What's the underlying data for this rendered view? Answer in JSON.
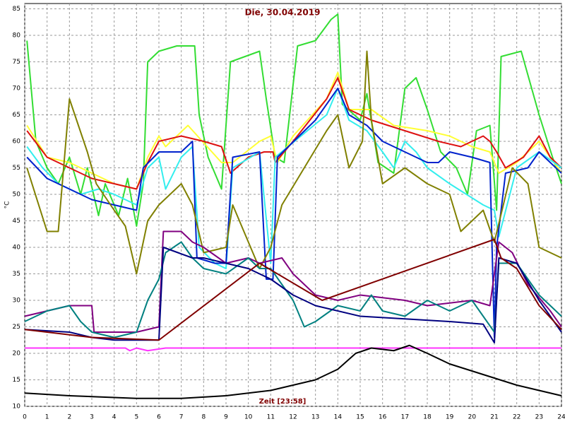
{
  "chart_data": {
    "type": "line",
    "title": "Die, 30.04.2019",
    "x_label": "Zeit [23:58]",
    "y_label": "°C",
    "xlim": [
      0,
      24
    ],
    "ylim": [
      10,
      86
    ],
    "xticks": [
      0,
      1,
      2,
      3,
      4,
      5,
      6,
      7,
      8,
      9,
      10,
      11,
      12,
      13,
      14,
      15,
      16,
      17,
      18,
      19,
      20,
      21,
      22,
      23,
      24
    ],
    "yticks": [
      10,
      15,
      20,
      25,
      30,
      35,
      40,
      45,
      50,
      55,
      60,
      65,
      70,
      75,
      80,
      85
    ],
    "grid": true,
    "series": [
      {
        "color": "#33dd33",
        "x": [
          0.1,
          0.5,
          1,
          1.5,
          2,
          2.5,
          2.8,
          3.3,
          3.6,
          4.2,
          4.6,
          5,
          5.3,
          5.5,
          6,
          6.8,
          7.6,
          7.8,
          8.2,
          8.8,
          9.2,
          10.5,
          10.8,
          11.2,
          11.6,
          12.2,
          13,
          13.7,
          14,
          14.2,
          15,
          15.3,
          15.8,
          16.5,
          17,
          17.5,
          18,
          18.6,
          19.3,
          19.8,
          20.2,
          20.8,
          21.1,
          21.3,
          22.2,
          23,
          23.6,
          24
        ],
        "values": [
          79,
          60,
          55,
          52,
          57,
          50,
          55,
          46,
          52,
          46,
          53,
          44,
          52,
          75,
          77,
          78,
          78,
          65,
          57,
          51,
          75,
          77,
          68,
          57,
          56,
          78,
          79,
          83,
          84,
          67,
          64,
          69,
          56,
          54,
          70,
          72,
          66,
          58,
          55,
          50,
          62,
          63,
          47,
          76,
          77,
          65,
          57,
          52
        ]
      },
      {
        "color": "#ffff33",
        "x": [
          0.1,
          1,
          2,
          3,
          4,
          5,
          5.5,
          6,
          6.3,
          7.3,
          8.8,
          9.3,
          10.5,
          11,
          11.3,
          12,
          13.5,
          14,
          14.5,
          15.5,
          16.5,
          18,
          19,
          20,
          20.8,
          21.2,
          22,
          23,
          24
        ],
        "values": [
          63,
          57,
          56,
          54,
          52,
          51,
          57,
          61,
          59,
          63,
          56,
          56,
          60,
          61,
          56,
          61,
          68,
          73,
          66,
          66,
          63,
          62,
          61,
          59,
          58,
          54,
          56,
          60,
          54
        ]
      },
      {
        "color": "#dd1111",
        "x": [
          0.1,
          1,
          2,
          3,
          4,
          5,
          5.5,
          6,
          7,
          8,
          8.8,
          9.2,
          10,
          10.7,
          11.1,
          11.2,
          12,
          13.5,
          14,
          14.5,
          15.5,
          17,
          18.5,
          19.5,
          20.5,
          20.8,
          21.1,
          21.5,
          22.3,
          23,
          23.5,
          24
        ],
        "values": [
          62,
          57,
          55,
          53,
          52,
          51,
          56,
          60,
          61,
          60,
          59,
          54,
          57,
          58,
          58,
          56,
          60,
          68,
          72,
          66,
          64,
          62,
          60,
          59,
          61,
          60,
          58,
          55,
          57,
          61,
          57,
          55
        ]
      },
      {
        "color": "#33eeee",
        "x": [
          0.1,
          0.8,
          1.5,
          2.5,
          3.3,
          4,
          5,
          5.5,
          6,
          6.3,
          7,
          7.5,
          7.8,
          8.5,
          9,
          9.3,
          10.5,
          11,
          11.2,
          13.5,
          14,
          14.5,
          15.3,
          16,
          16.5,
          17,
          17.5,
          18,
          19,
          20.5,
          21,
          21.2,
          22,
          23,
          24
        ],
        "values": [
          59,
          55,
          52,
          50,
          51,
          50,
          48,
          55,
          57,
          51,
          57,
          59,
          40,
          37,
          36,
          55,
          58,
          37,
          57,
          65,
          70,
          64,
          62,
          58,
          55,
          60,
          58,
          55,
          52,
          48,
          47,
          42,
          55,
          58,
          55
        ]
      },
      {
        "color": "#0022cc",
        "x": [
          0.1,
          1,
          2,
          3,
          4,
          5,
          5.3,
          6,
          7,
          7.5,
          7.7,
          8.5,
          9,
          9.3,
          10.5,
          10.8,
          11.1,
          11.3,
          13,
          14,
          14.5,
          15.3,
          16,
          17,
          18,
          18.5,
          19,
          20,
          20.8,
          21,
          21.1,
          21.5,
          22.5,
          23,
          24
        ],
        "values": [
          57,
          53,
          51,
          49,
          48,
          47,
          55,
          58,
          58,
          60,
          38,
          37,
          37,
          57,
          58,
          34,
          34,
          57,
          64,
          70,
          65,
          63,
          60,
          58,
          56,
          56,
          58,
          57,
          56,
          23,
          40,
          54,
          55,
          58,
          54
        ]
      },
      {
        "color": "#808000",
        "x": [
          0.1,
          1,
          1.5,
          2,
          2.8,
          3.2,
          4,
          4.5,
          5,
          5.5,
          6,
          7,
          7.5,
          8,
          9,
          9.3,
          10.5,
          11,
          11.5,
          12.5,
          13.5,
          14,
          14.5,
          15.1,
          15.3,
          15.5,
          16,
          17,
          18,
          19,
          19.5,
          20.5,
          21,
          21.8,
          22.5,
          23,
          24
        ],
        "values": [
          55,
          43,
          43,
          68,
          58,
          52,
          47,
          44,
          35,
          45,
          48,
          52,
          48,
          39,
          40,
          48,
          36,
          40,
          48,
          55,
          62,
          65,
          55,
          60,
          77,
          64,
          52,
          55,
          52,
          50,
          43,
          47,
          41,
          55,
          52,
          40,
          38
        ]
      },
      {
        "color": "#800080",
        "x": [
          0,
          1,
          2,
          3,
          3.1,
          5,
          6,
          6.2,
          7,
          7.5,
          8,
          9,
          10,
          10.5,
          11.5,
          12,
          12.5,
          13,
          14,
          15,
          17,
          18,
          20,
          20.8,
          21.2,
          21.8,
          22.5,
          23.5,
          24
        ],
        "values": [
          27,
          28,
          29,
          29,
          24,
          24,
          25,
          43,
          43,
          41,
          40,
          37,
          38,
          37,
          38,
          35,
          33,
          31,
          30,
          31,
          30,
          29,
          30,
          29,
          41,
          39,
          33,
          28,
          25
        ]
      },
      {
        "color": "#008080",
        "x": [
          0,
          1,
          2,
          2.5,
          3,
          4,
          5,
          5.5,
          6,
          6.3,
          7,
          7.5,
          8,
          9,
          10,
          10.5,
          11,
          11.5,
          12,
          12.5,
          13,
          14,
          15,
          15.5,
          16,
          17,
          18,
          19,
          20,
          20.5,
          21,
          21.2,
          22,
          23,
          24
        ],
        "values": [
          26,
          28,
          29,
          26,
          24,
          23,
          24,
          30,
          34,
          39,
          41,
          38,
          36,
          35,
          38,
          36,
          36,
          33,
          30,
          25,
          26,
          29,
          28,
          31,
          28,
          27,
          30,
          28,
          30,
          27,
          24,
          37,
          37,
          31,
          27
        ]
      },
      {
        "color": "#000080",
        "x": [
          0,
          2,
          3,
          4,
          6,
          6.2,
          7.5,
          8,
          9,
          10,
          11,
          12,
          13,
          15,
          17,
          19,
          20.5,
          21,
          21.2,
          22,
          23,
          24
        ],
        "values": [
          24.5,
          24,
          23,
          22.5,
          22.5,
          40,
          38,
          38,
          37,
          36,
          34,
          31,
          29,
          27,
          26.5,
          26,
          25.5,
          22,
          38,
          37,
          30,
          24
        ]
      },
      {
        "color": "#800000",
        "x": [
          0,
          3,
          6,
          10.5,
          13.3,
          21,
          21.3,
          22,
          23,
          24
        ],
        "values": [
          24.5,
          23,
          22.5,
          37,
          30,
          41.5,
          38,
          36,
          29,
          24.5
        ]
      },
      {
        "color": "#ff33ff",
        "x": [
          0,
          4.5,
          4.7,
          5,
          5.5,
          6.3,
          24
        ],
        "values": [
          21,
          21,
          20.5,
          21,
          20.5,
          21,
          21
        ]
      },
      {
        "color": "#000000",
        "x": [
          0,
          2,
          5,
          7,
          9,
          11,
          13,
          14,
          14.8,
          15.5,
          16.5,
          17.2,
          18,
          19,
          20.5,
          22,
          23,
          24
        ],
        "values": [
          12.5,
          12,
          11.5,
          11.5,
          12,
          13,
          15,
          17,
          20,
          21,
          20.5,
          21.5,
          20,
          18,
          16,
          14,
          13,
          12
        ]
      }
    ]
  }
}
